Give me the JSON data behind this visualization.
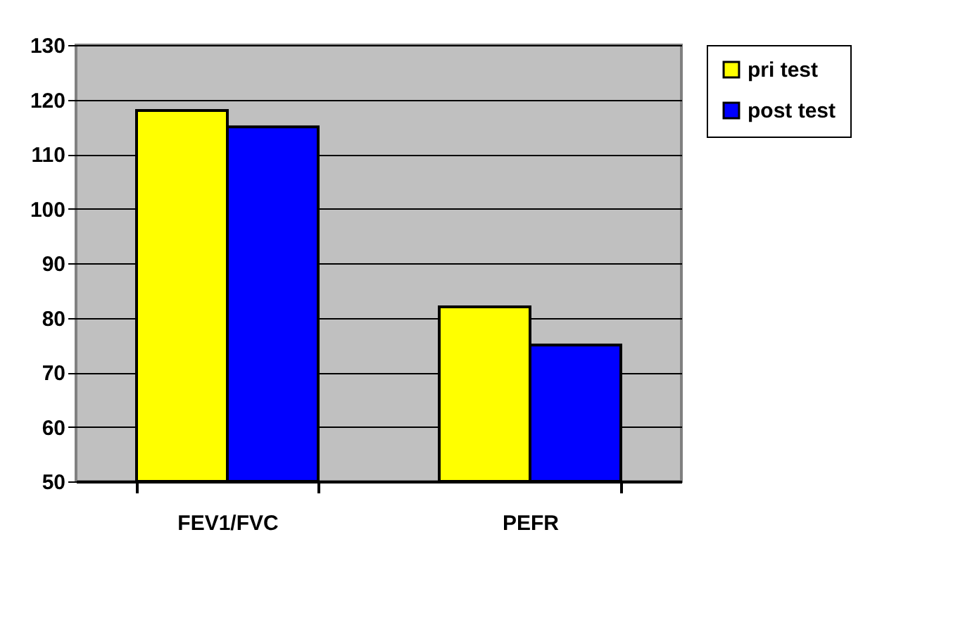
{
  "chart_data": {
    "type": "bar",
    "categories": [
      "FEV1/FVC",
      "PEFR"
    ],
    "series": [
      {
        "name": "pri test",
        "color": "#ffff00",
        "values": [
          118,
          82
        ]
      },
      {
        "name": "post test",
        "color": "#0000ff",
        "values": [
          115,
          75
        ]
      }
    ],
    "ylim": [
      50,
      130
    ],
    "yticks": [
      50,
      60,
      70,
      80,
      90,
      100,
      110,
      120,
      130
    ],
    "grid": "y",
    "legend": "right"
  }
}
